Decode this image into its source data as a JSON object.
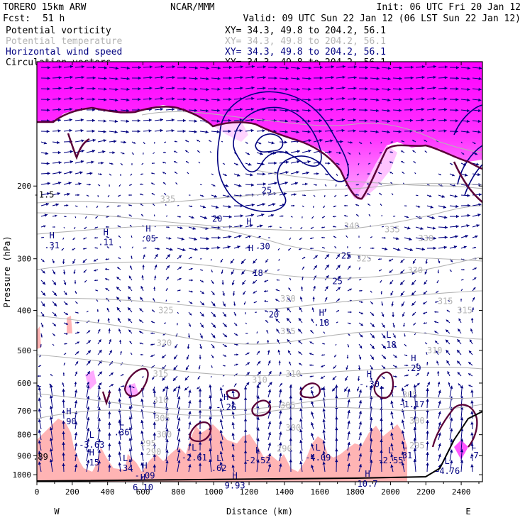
{
  "header": {
    "model": "TORERO  15km ARW",
    "center": "NCAR/MMM",
    "init": "Init: 06 UTC Fri 20 Jan 12",
    "fcst_label": "Fcst:",
    "fcst_value": "51 h",
    "valid": "Valid: 09 UTC Sun 22 Jan 12 (06 LST Sun 22 Jan 12)"
  },
  "fields": [
    {
      "name": "Potential vorticity",
      "xy": "XY=  34.3, 49.8 to 204.2, 56.1",
      "color": "#000000"
    },
    {
      "name": "Potential temperature",
      "xy": "XY=  34.3, 49.8 to 204.2, 56.1",
      "color": "#b4b4b4"
    },
    {
      "name": "Horizontal wind speed",
      "xy": "XY=  34.3, 49.8 to 204.2, 56.1",
      "color": "#000080"
    },
    {
      "name": "Circulation vectors",
      "xy": "XY=  34.3, 49.8 to 204.2, 56.1",
      "color": "#000000"
    }
  ],
  "colors": {
    "pv_high": "#ff00ff",
    "pv_mid": "#ffaaff",
    "pv_low": "#ffb4b4",
    "theta": "#b4b4b4",
    "wind": "#000080",
    "pv_line": "#5a0037"
  },
  "chart_data": {
    "type": "cross-section",
    "xlabel": "Distance (km)",
    "ylabel": "Pressure (hPa)",
    "xlim": [
      0,
      2520
    ],
    "ylim": [
      1040,
      100
    ],
    "yscale": "log",
    "x_ticks": [
      0,
      200,
      400,
      600,
      800,
      1000,
      1200,
      1400,
      1600,
      1800,
      2000,
      2200,
      2400
    ],
    "y_ticks": [
      200,
      300,
      400,
      500,
      600,
      700,
      800,
      900,
      1000
    ],
    "left_end": "W",
    "right_end": "E",
    "theta_labels": [
      {
        "t": "335",
        "x": 740,
        "p": 215
      },
      {
        "t": "340",
        "x": 1780,
        "p": 250
      },
      {
        "t": "335",
        "x": 2010,
        "p": 255
      },
      {
        "t": "330",
        "x": 2200,
        "p": 268
      },
      {
        "t": "325",
        "x": 1850,
        "p": 300
      },
      {
        "t": "320",
        "x": 2140,
        "p": 320
      },
      {
        "t": "315",
        "x": 2310,
        "p": 380
      },
      {
        "t": "315",
        "x": 2420,
        "p": 400
      },
      {
        "t": "320",
        "x": 1420,
        "p": 375
      },
      {
        "t": "325",
        "x": 730,
        "p": 400
      },
      {
        "t": "315",
        "x": 1420,
        "p": 450
      },
      {
        "t": "320",
        "x": 720,
        "p": 480
      },
      {
        "t": "310",
        "x": 2250,
        "p": 500
      },
      {
        "t": "315",
        "x": 700,
        "p": 570
      },
      {
        "t": "310",
        "x": 1450,
        "p": 570
      },
      {
        "t": "310",
        "x": 1260,
        "p": 590
      },
      {
        "t": "305",
        "x": 2110,
        "p": 640
      },
      {
        "t": "310",
        "x": 700,
        "p": 660
      },
      {
        "t": "305",
        "x": 1420,
        "p": 680
      },
      {
        "t": "305",
        "x": 710,
        "p": 730
      },
      {
        "t": "300",
        "x": 2150,
        "p": 740
      },
      {
        "t": "300",
        "x": 1450,
        "p": 770
      },
      {
        "t": "300",
        "x": 720,
        "p": 800
      },
      {
        "t": "295",
        "x": 630,
        "p": 840
      },
      {
        "t": "295",
        "x": 2150,
        "p": 850
      },
      {
        "t": "290",
        "x": 1400,
        "p": 865
      },
      {
        "t": "290",
        "x": 660,
        "p": 880
      }
    ],
    "wind_labels": [
      {
        "t": "25",
        "x": 1300,
        "p": 205
      },
      {
        "t": "20",
        "x": 1020,
        "p": 240
      },
      {
        "t": "30",
        "x": 1290,
        "p": 280
      },
      {
        "t": "25",
        "x": 1750,
        "p": 295
      },
      {
        "t": "18",
        "x": 1250,
        "p": 325
      },
      {
        "t": "25",
        "x": 1700,
        "p": 340
      },
      {
        "t": "20",
        "x": 1340,
        "p": 410
      }
    ],
    "extrema": [
      {
        "k": "H",
        "v": ".31",
        "x": 85,
        "p": 270
      },
      {
        "k": "H",
        "v": ".11",
        "x": 390,
        "p": 265
      },
      {
        "k": "H",
        "v": ".05",
        "x": 630,
        "p": 260
      },
      {
        "k": "H",
        "v": "",
        "x": 1200,
        "p": 250
      },
      {
        "k": "H",
        "v": "",
        "x": 1210,
        "p": 290
      },
      {
        "k": "H",
        "v": ".18",
        "x": 1610,
        "p": 415
      },
      {
        "k": "L",
        "v": ".18",
        "x": 1990,
        "p": 470
      },
      {
        "k": "H",
        "v": ".29",
        "x": 2130,
        "p": 535
      },
      {
        "k": "H",
        "v": "-.30",
        "x": 1880,
        "p": 585
      },
      {
        "k": "L",
        "v": "-1.17",
        "x": 2120,
        "p": 655
      },
      {
        "k": "H",
        "v": "-.26",
        "x": 1070,
        "p": 665
      },
      {
        "k": "H",
        "v": ".90",
        "x": 180,
        "p": 720
      },
      {
        "k": "L",
        "v": ".36",
        "x": 480,
        "p": 765
      },
      {
        "k": "L",
        "v": "-3.63",
        "x": 310,
        "p": 820
      },
      {
        "k": "L",
        "v": "-2.61",
        "x": 890,
        "p": 880
      },
      {
        "k": "L",
        "v": "-2.52",
        "x": 1250,
        "p": 895
      },
      {
        "k": "L",
        "v": "-4.09",
        "x": 1590,
        "p": 880
      },
      {
        "k": "L",
        "v": ".31",
        "x": 2080,
        "p": 870
      },
      {
        "k": "L",
        "v": "-2.55",
        "x": 2000,
        "p": 895
      },
      {
        "k": "L",
        "v": ".7",
        "x": 2470,
        "p": 870
      },
      {
        "k": "H",
        "v": ".15",
        "x": 310,
        "p": 905
      },
      {
        "k": "L",
        "v": ".34",
        "x": 500,
        "p": 935
      },
      {
        "k": "L",
        "v": ".62",
        "x": 1030,
        "p": 935
      },
      {
        "k": "L",
        "v": "-4.76",
        "x": 2320,
        "p": 950
      },
      {
        "k": "H",
        "v": "-.09",
        "x": 610,
        "p": 975
      },
      {
        "k": "H",
        "v": "10.7",
        "x": 1870,
        "p": 1020
      },
      {
        "k": "H",
        "v": "9.93",
        "x": 1120,
        "p": 1030
      },
      {
        "k": "H",
        "v": "6.10",
        "x": 600,
        "p": 1040
      }
    ],
    "edge_values": [
      {
        "t": "-1.5",
        "x": 40,
        "p": 210
      },
      {
        "t": ".89",
        "x": 20,
        "p": 905
      }
    ]
  }
}
